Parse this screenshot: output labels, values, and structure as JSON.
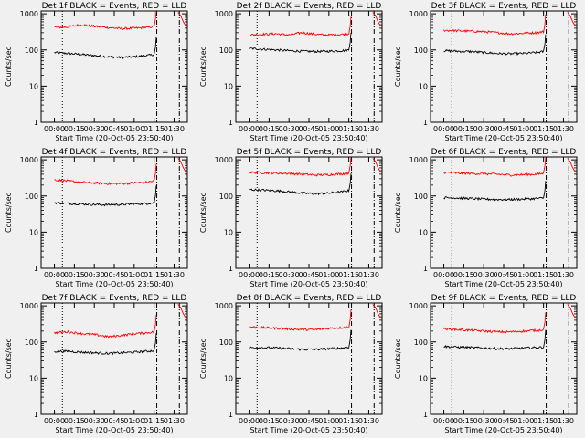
{
  "figure": {
    "xtick_labels": [
      "00:00",
      "00:15",
      "00:30",
      "00:45",
      "01:00",
      "01:15",
      "01:30"
    ],
    "ytick_labels": [
      "1",
      "10",
      "100",
      "1000"
    ]
  },
  "chart_data": [
    {
      "type": "line",
      "title": "Det 1f BLACK = Events, RED = LLD",
      "xlabel": "Start Time (20-Oct-05 23:50:40)",
      "ylabel": "Counts/sec",
      "yscale": "log",
      "ylim": [
        1,
        1200
      ],
      "xlim": [
        -10,
        100
      ],
      "series": [
        {
          "color": "#000000",
          "x": [
            0,
            10,
            20,
            30,
            40,
            50,
            60,
            70,
            75
          ],
          "y": [
            85,
            80,
            75,
            70,
            65,
            62,
            65,
            70,
            75
          ]
        },
        {
          "color": "#ff0000",
          "x": [
            0,
            10,
            20,
            30,
            40,
            50,
            60,
            70,
            75
          ],
          "y": [
            420,
            430,
            500,
            450,
            420,
            390,
            400,
            420,
            450
          ]
        }
      ]
    },
    {
      "type": "line",
      "title": "Det 2f BLACK = Events, RED = LLD",
      "xlabel": "Start Time (20-Oct-05 23:50:40)",
      "ylabel": "Counts/sec",
      "yscale": "log",
      "ylim": [
        1,
        1200
      ],
      "xlim": [
        -10,
        100
      ],
      "series": [
        {
          "color": "#000000",
          "x": [
            0,
            10,
            20,
            30,
            40,
            50,
            60,
            70,
            75
          ],
          "y": [
            110,
            105,
            100,
            95,
            92,
            90,
            92,
            95,
            100
          ]
        },
        {
          "color": "#ff0000",
          "x": [
            0,
            10,
            20,
            30,
            40,
            50,
            60,
            70,
            75
          ],
          "y": [
            260,
            270,
            280,
            260,
            300,
            270,
            260,
            270,
            280
          ]
        }
      ]
    },
    {
      "type": "line",
      "title": "Det 3f BLACK = Events, RED = LLD",
      "xlabel": "Start Time (20-Oct-05 23:50:40)",
      "ylabel": "Counts/sec",
      "yscale": "log",
      "ylim": [
        1,
        1200
      ],
      "xlim": [
        -10,
        100
      ],
      "series": [
        {
          "color": "#000000",
          "x": [
            0,
            10,
            20,
            30,
            40,
            50,
            60,
            70,
            75
          ],
          "y": [
            95,
            92,
            90,
            85,
            80,
            78,
            80,
            85,
            90
          ]
        },
        {
          "color": "#ff0000",
          "x": [
            0,
            10,
            20,
            30,
            40,
            50,
            60,
            70,
            75
          ],
          "y": [
            350,
            340,
            330,
            320,
            300,
            280,
            290,
            300,
            320
          ]
        }
      ]
    },
    {
      "type": "line",
      "title": "Det 4f BLACK = Events, RED = LLD",
      "xlabel": "Start Time (20-Oct-05 23:50:40)",
      "ylabel": "Counts/sec",
      "yscale": "log",
      "ylim": [
        1,
        1200
      ],
      "xlim": [
        -10,
        100
      ],
      "series": [
        {
          "color": "#000000",
          "x": [
            0,
            10,
            20,
            30,
            40,
            50,
            60,
            70,
            75
          ],
          "y": [
            65,
            62,
            60,
            58,
            57,
            58,
            60,
            62,
            65
          ]
        },
        {
          "color": "#ff0000",
          "x": [
            0,
            10,
            20,
            30,
            40,
            50,
            60,
            70,
            75
          ],
          "y": [
            280,
            260,
            240,
            230,
            220,
            220,
            230,
            240,
            260
          ]
        }
      ]
    },
    {
      "type": "line",
      "title": "Det 5f BLACK = Events, RED = LLD",
      "xlabel": "Start Time (20-Oct-05 23:50:40)",
      "ylabel": "Counts/sec",
      "yscale": "log",
      "ylim": [
        1,
        1200
      ],
      "xlim": [
        -10,
        100
      ],
      "series": [
        {
          "color": "#000000",
          "x": [
            0,
            10,
            20,
            30,
            40,
            50,
            60,
            70,
            75
          ],
          "y": [
            150,
            145,
            140,
            130,
            120,
            115,
            120,
            130,
            140
          ]
        },
        {
          "color": "#ff0000",
          "x": [
            0,
            10,
            20,
            30,
            40,
            50,
            60,
            70,
            75
          ],
          "y": [
            450,
            440,
            430,
            420,
            400,
            380,
            390,
            410,
            430
          ]
        }
      ]
    },
    {
      "type": "line",
      "title": "Det 6f BLACK = Events, RED = LLD",
      "xlabel": "Start Time (20-Oct-05 23:50:40)",
      "ylabel": "Counts/sec",
      "yscale": "log",
      "ylim": [
        1,
        1200
      ],
      "xlim": [
        -10,
        100
      ],
      "series": [
        {
          "color": "#000000",
          "x": [
            0,
            10,
            20,
            30,
            40,
            50,
            60,
            70,
            75
          ],
          "y": [
            90,
            88,
            85,
            82,
            80,
            80,
            82,
            85,
            88
          ]
        },
        {
          "color": "#ff0000",
          "x": [
            0,
            10,
            20,
            30,
            40,
            50,
            60,
            70,
            75
          ],
          "y": [
            450,
            430,
            420,
            410,
            400,
            380,
            390,
            400,
            420
          ]
        }
      ]
    },
    {
      "type": "line",
      "title": "Det 7f BLACK = Events, RED = LLD",
      "xlabel": "Start Time (20-Oct-05 23:50:40)",
      "ylabel": "Counts/sec",
      "yscale": "log",
      "ylim": [
        1,
        1200
      ],
      "xlim": [
        -10,
        100
      ],
      "series": [
        {
          "color": "#000000",
          "x": [
            0,
            10,
            20,
            30,
            40,
            50,
            60,
            70,
            75
          ],
          "y": [
            55,
            55,
            52,
            50,
            48,
            50,
            52,
            55,
            58
          ]
        },
        {
          "color": "#ff0000",
          "x": [
            0,
            10,
            20,
            30,
            40,
            50,
            60,
            70,
            75
          ],
          "y": [
            180,
            190,
            170,
            160,
            140,
            150,
            170,
            180,
            190
          ]
        }
      ]
    },
    {
      "type": "line",
      "title": "Det 8f BLACK = Events, RED = LLD",
      "xlabel": "Start Time (20-Oct-05 23:50:40)",
      "ylabel": "Counts/sec",
      "yscale": "log",
      "ylim": [
        1,
        1200
      ],
      "xlim": [
        -10,
        100
      ],
      "series": [
        {
          "color": "#000000",
          "x": [
            0,
            10,
            20,
            30,
            40,
            50,
            60,
            70,
            75
          ],
          "y": [
            70,
            70,
            68,
            65,
            62,
            62,
            65,
            68,
            72
          ]
        },
        {
          "color": "#ff0000",
          "x": [
            0,
            10,
            20,
            30,
            40,
            50,
            60,
            70,
            75
          ],
          "y": [
            260,
            250,
            240,
            230,
            220,
            220,
            240,
            250,
            260
          ]
        }
      ]
    },
    {
      "type": "line",
      "title": "Det 9f BLACK = Events, RED = LLD",
      "xlabel": "Start Time (20-Oct-05 23:50:40)",
      "ylabel": "Counts/sec",
      "yscale": "log",
      "ylim": [
        1,
        1200
      ],
      "xlim": [
        -10,
        100
      ],
      "series": [
        {
          "color": "#000000",
          "x": [
            0,
            10,
            20,
            30,
            40,
            50,
            60,
            70,
            75
          ],
          "y": [
            75,
            72,
            70,
            68,
            65,
            65,
            68,
            70,
            72
          ]
        },
        {
          "color": "#ff0000",
          "x": [
            0,
            10,
            20,
            30,
            40,
            50,
            60,
            70,
            75
          ],
          "y": [
            230,
            220,
            210,
            200,
            190,
            190,
            200,
            210,
            220
          ]
        }
      ]
    }
  ]
}
